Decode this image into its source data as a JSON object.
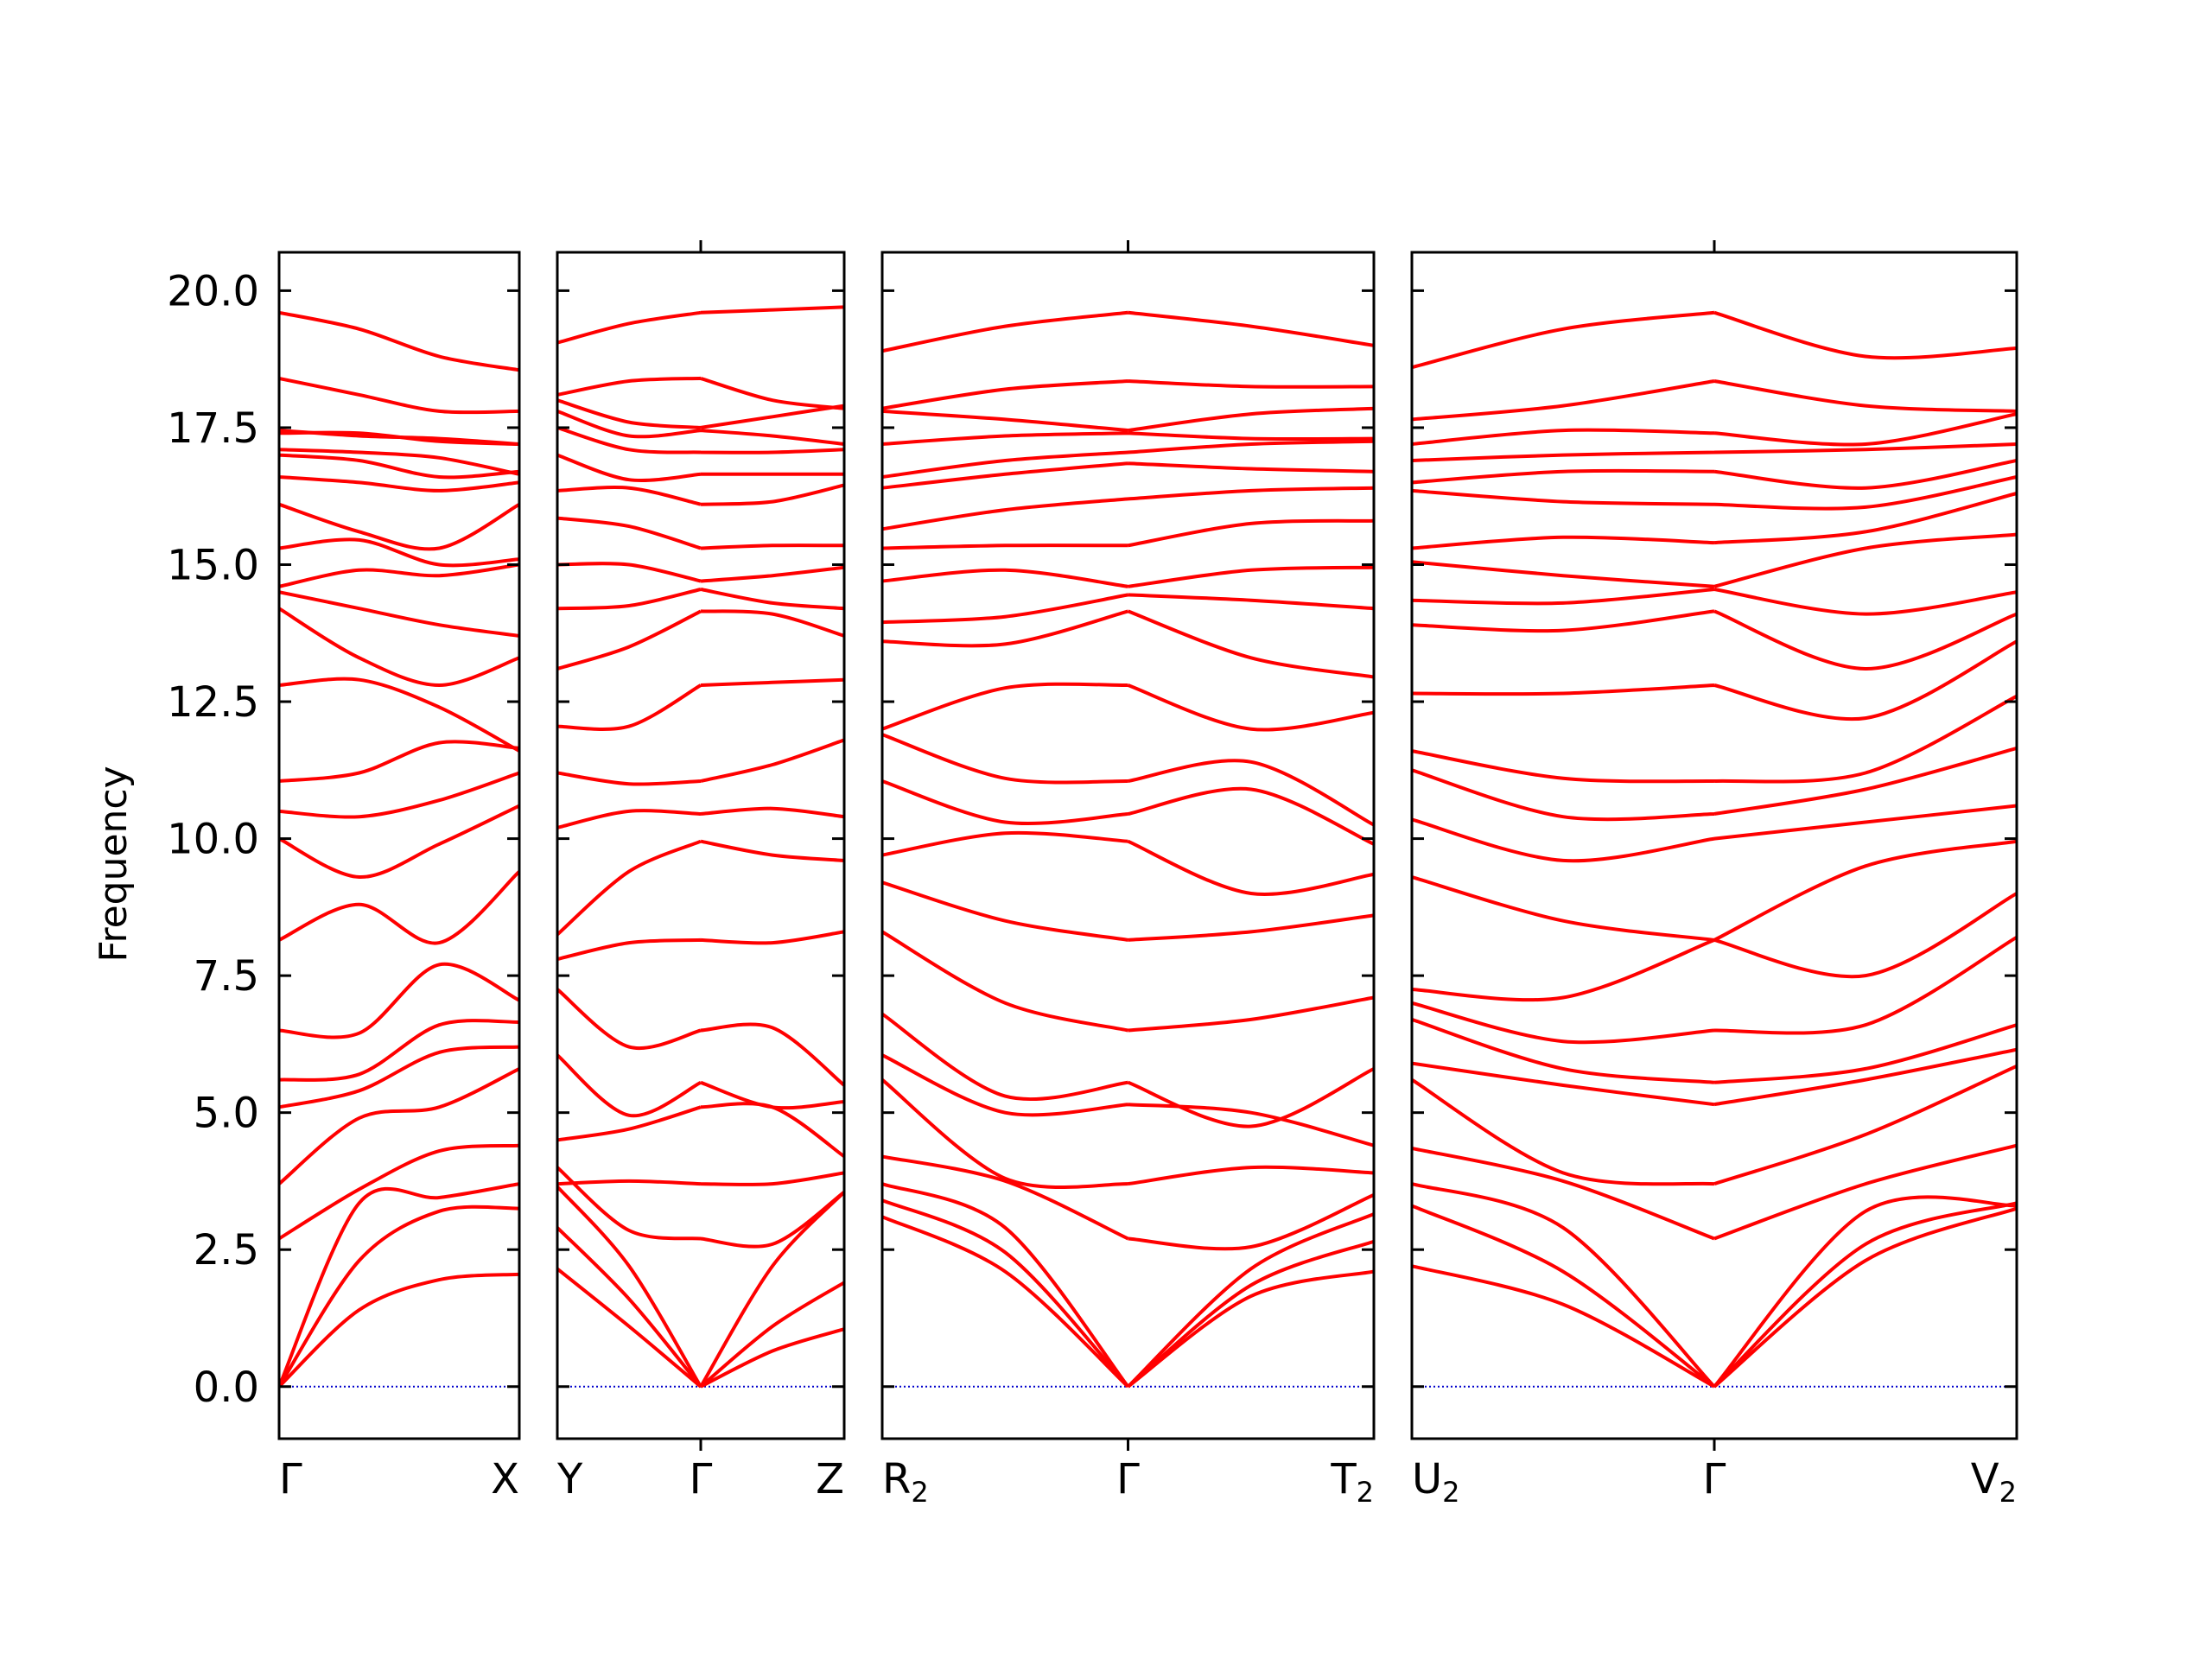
{
  "chart_data": {
    "type": "line",
    "ylabel": "Frequency",
    "xlabel": "",
    "ylim": [
      -0.95,
      20.7
    ],
    "yticks": [
      0.0,
      2.5,
      5.0,
      7.5,
      10.0,
      12.5,
      15.0,
      17.5,
      20.0
    ],
    "ytick_labels": [
      "0.0",
      "2.5",
      "5.0",
      "7.5",
      "10.0",
      "12.5",
      "15.0",
      "17.5",
      "20.0"
    ],
    "line_color": "#ff0000",
    "zero_line_color": "#0000cc",
    "grid": false,
    "panels": [
      {
        "name": "Γ-X",
        "start_label": {
          "main": "Γ",
          "sub": ""
        },
        "end_label": {
          "main": "X",
          "sub": ""
        },
        "mid_label": null,
        "branches": [
          [
            0.0,
            1.4,
            1.95,
            2.05
          ],
          [
            0.0,
            2.3,
            3.2,
            3.25
          ],
          [
            0.0,
            3.35,
            3.45,
            3.7
          ],
          [
            2.7,
            3.6,
            4.3,
            4.4
          ],
          [
            3.7,
            4.9,
            5.1,
            5.8
          ],
          [
            5.1,
            5.4,
            6.1,
            6.2
          ],
          [
            5.6,
            5.7,
            6.6,
            6.65
          ],
          [
            6.5,
            6.45,
            7.7,
            7.05
          ],
          [
            8.15,
            8.8,
            8.1,
            9.4
          ],
          [
            10.0,
            9.3,
            9.9,
            10.6
          ],
          [
            10.5,
            10.4,
            10.7,
            11.2
          ],
          [
            11.05,
            11.2,
            11.75,
            11.65
          ],
          [
            12.8,
            12.9,
            12.4,
            11.6
          ],
          [
            14.2,
            13.3,
            12.8,
            13.3
          ],
          [
            14.5,
            14.2,
            13.9,
            13.7
          ],
          [
            14.6,
            14.9,
            14.8,
            15.0
          ],
          [
            15.3,
            15.45,
            15.0,
            15.1
          ],
          [
            16.1,
            15.6,
            15.3,
            16.1
          ],
          [
            16.6,
            16.5,
            16.35,
            16.5
          ],
          [
            17.0,
            16.9,
            16.6,
            16.7
          ],
          [
            17.1,
            17.05,
            16.95,
            16.65
          ],
          [
            17.4,
            17.4,
            17.25,
            17.2
          ],
          [
            17.45,
            17.35,
            17.3,
            17.2
          ],
          [
            18.4,
            18.1,
            17.8,
            17.8
          ],
          [
            19.6,
            19.3,
            18.8,
            18.55
          ]
        ]
      },
      {
        "name": "Y-Γ-Z",
        "start_label": {
          "main": "Y",
          "sub": ""
        },
        "end_label": {
          "main": "Z",
          "sub": ""
        },
        "mid_label": {
          "main": "Γ",
          "sub": ""
        },
        "branches": [
          [
            2.15,
            1.1,
            0.0,
            0.65,
            1.05
          ],
          [
            2.9,
            1.6,
            0.0,
            1.1,
            1.9
          ],
          [
            3.65,
            2.2,
            0.0,
            2.2,
            3.55
          ],
          [
            4.0,
            2.85,
            2.7,
            2.6,
            3.55
          ],
          [
            3.7,
            3.75,
            3.7,
            3.7,
            3.9
          ],
          [
            4.5,
            4.7,
            5.1,
            5.1,
            4.2
          ],
          [
            6.05,
            4.95,
            5.55,
            5.1,
            5.2
          ],
          [
            7.25,
            6.2,
            6.5,
            6.55,
            5.5
          ],
          [
            7.8,
            8.1,
            8.15,
            8.1,
            8.3
          ],
          [
            8.25,
            9.4,
            9.95,
            9.7,
            9.6
          ],
          [
            10.2,
            10.5,
            10.45,
            10.55,
            10.4
          ],
          [
            11.2,
            11.0,
            11.05,
            11.35,
            11.8
          ],
          [
            12.05,
            12.05,
            12.8,
            12.85,
            12.9
          ],
          [
            13.1,
            13.5,
            14.15,
            14.1,
            13.7
          ],
          [
            14.2,
            14.25,
            14.55,
            14.3,
            14.2
          ],
          [
            15.0,
            15.0,
            14.7,
            14.8,
            14.95
          ],
          [
            15.85,
            15.7,
            15.3,
            15.35,
            15.35
          ],
          [
            16.35,
            16.4,
            16.1,
            16.15,
            16.45
          ],
          [
            17.0,
            16.55,
            16.65,
            16.65,
            16.65
          ],
          [
            17.5,
            17.1,
            17.05,
            17.05,
            17.1
          ],
          [
            17.8,
            17.35,
            17.45,
            17.35,
            17.2
          ],
          [
            18.0,
            17.6,
            17.5,
            17.7,
            17.9
          ],
          [
            18.1,
            18.35,
            18.4,
            18.0,
            17.85
          ],
          [
            19.05,
            19.4,
            19.6,
            19.65,
            19.7
          ]
        ]
      },
      {
        "name": "R2-Γ-T2",
        "start_label": {
          "main": "R",
          "sub": "2"
        },
        "end_label": {
          "main": "T",
          "sub": "2"
        },
        "mid_label": {
          "main": "Γ",
          "sub": ""
        },
        "branches": [
          [
            3.1,
            2.1,
            0.0,
            1.65,
            2.1
          ],
          [
            3.4,
            2.45,
            0.0,
            1.85,
            2.65
          ],
          [
            3.7,
            2.9,
            0.0,
            2.15,
            3.15
          ],
          [
            4.2,
            3.75,
            2.7,
            2.55,
            3.5
          ],
          [
            5.6,
            3.8,
            3.7,
            4.0,
            3.9
          ],
          [
            6.05,
            5.0,
            5.15,
            5.0,
            4.4
          ],
          [
            6.8,
            5.3,
            5.55,
            4.75,
            5.8
          ],
          [
            8.3,
            7.0,
            6.5,
            6.7,
            7.1
          ],
          [
            9.2,
            8.5,
            8.15,
            8.3,
            8.6
          ],
          [
            9.7,
            10.1,
            9.95,
            9.0,
            9.35
          ],
          [
            11.05,
            10.3,
            10.45,
            10.9,
            9.9
          ],
          [
            11.9,
            11.1,
            11.05,
            11.4,
            10.25
          ],
          [
            12.0,
            12.75,
            12.8,
            12.0,
            12.3
          ],
          [
            13.6,
            13.55,
            14.15,
            13.3,
            12.95
          ],
          [
            13.95,
            14.05,
            14.45,
            14.35,
            14.2
          ],
          [
            14.7,
            14.9,
            14.6,
            14.9,
            14.95
          ],
          [
            15.3,
            15.35,
            15.35,
            15.75,
            15.8
          ],
          [
            15.65,
            16.0,
            16.2,
            16.35,
            16.4
          ],
          [
            16.4,
            16.65,
            16.85,
            16.75,
            16.7
          ],
          [
            16.6,
            16.9,
            17.05,
            17.2,
            17.25
          ],
          [
            17.2,
            17.35,
            17.4,
            17.3,
            17.3
          ],
          [
            17.8,
            17.65,
            17.45,
            17.75,
            17.85
          ],
          [
            17.85,
            18.2,
            18.35,
            18.25,
            18.25
          ],
          [
            18.9,
            19.35,
            19.6,
            19.35,
            19.0
          ]
        ]
      },
      {
        "name": "U2-Γ-V2",
        "start_label": {
          "main": "U",
          "sub": "2"
        },
        "end_label": {
          "main": "V",
          "sub": "2"
        },
        "mid_label": {
          "main": "Γ",
          "sub": ""
        },
        "branches": [
          [
            2.2,
            1.5,
            0.0,
            2.3,
            3.25
          ],
          [
            3.3,
            2.1,
            0.0,
            2.6,
            3.35
          ],
          [
            3.7,
            2.9,
            0.0,
            3.2,
            3.3
          ],
          [
            4.35,
            3.75,
            2.7,
            3.7,
            4.4
          ],
          [
            5.6,
            3.9,
            3.7,
            4.6,
            5.85
          ],
          [
            5.9,
            5.5,
            5.15,
            5.6,
            6.15
          ],
          [
            6.7,
            5.8,
            5.55,
            5.8,
            6.6
          ],
          [
            7.0,
            6.3,
            6.5,
            6.6,
            8.2
          ],
          [
            7.25,
            7.1,
            8.15,
            7.5,
            9.0
          ],
          [
            9.3,
            8.5,
            8.15,
            9.5,
            9.95
          ],
          [
            10.35,
            9.6,
            10.0,
            10.3,
            10.6
          ],
          [
            11.25,
            10.4,
            10.45,
            10.9,
            11.65
          ],
          [
            11.6,
            11.1,
            11.05,
            11.2,
            12.6
          ],
          [
            12.65,
            12.65,
            12.8,
            12.2,
            13.6
          ],
          [
            13.9,
            13.8,
            14.15,
            13.1,
            14.1
          ],
          [
            14.35,
            14.3,
            14.55,
            14.1,
            14.5
          ],
          [
            15.05,
            14.8,
            14.6,
            15.3,
            15.55
          ],
          [
            15.3,
            15.5,
            15.4,
            15.6,
            16.3
          ],
          [
            16.35,
            16.15,
            16.1,
            16.05,
            16.6
          ],
          [
            16.5,
            16.7,
            16.7,
            16.4,
            16.9
          ],
          [
            16.9,
            17.0,
            17.05,
            17.1,
            17.2
          ],
          [
            17.2,
            17.45,
            17.4,
            17.2,
            17.75
          ],
          [
            17.65,
            17.9,
            18.35,
            17.9,
            17.8
          ],
          [
            18.6,
            19.3,
            19.6,
            18.8,
            18.95
          ]
        ]
      }
    ]
  }
}
